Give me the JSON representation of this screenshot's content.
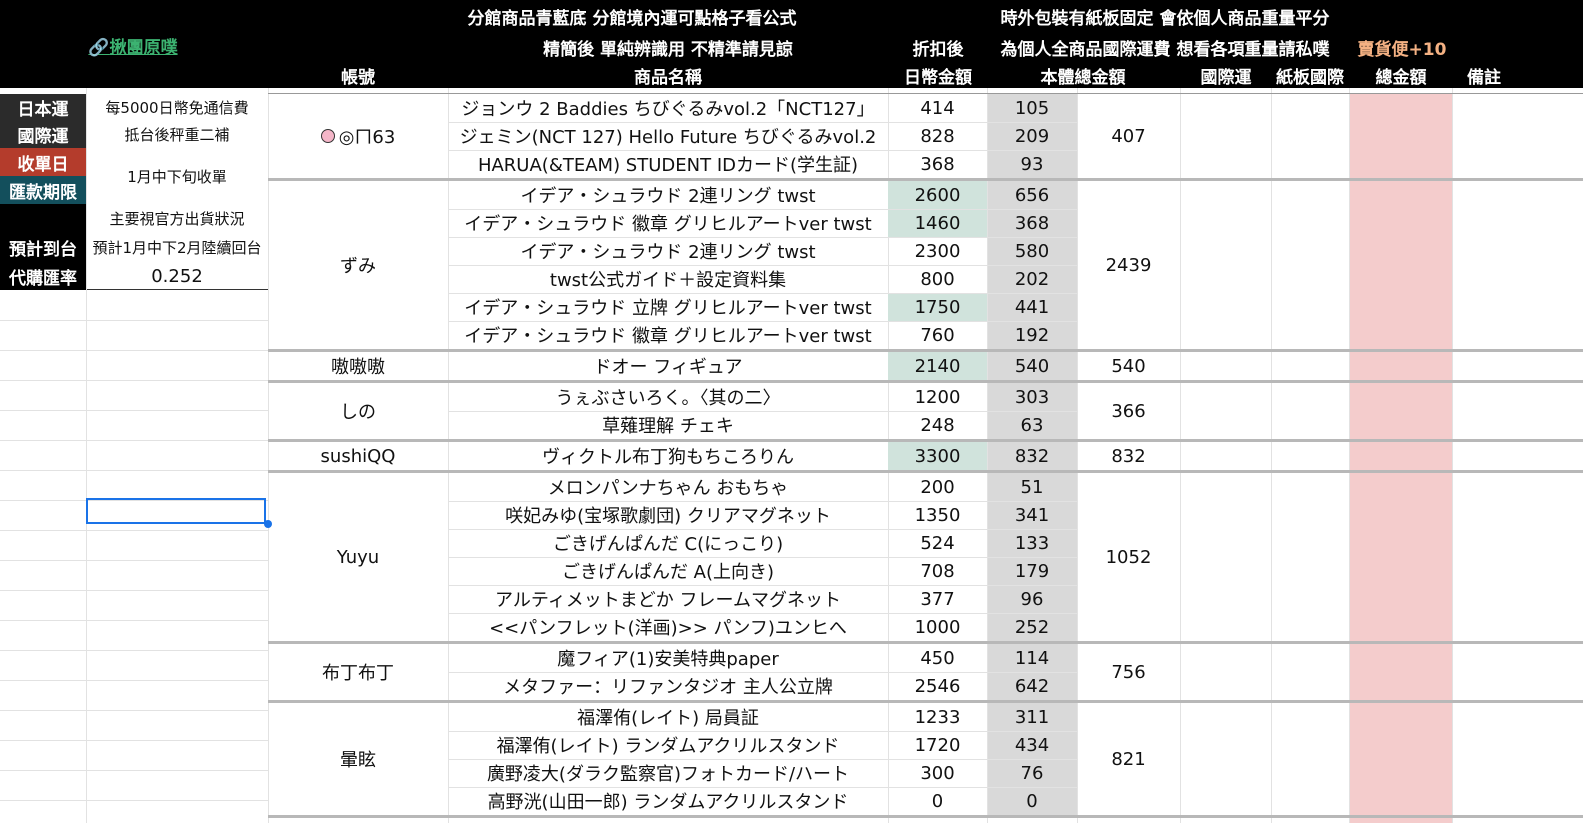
{
  "header": {
    "line1_left": "分館商品青藍底 分館境內運可點格子看公式",
    "line1_right": "時外包裝有紙板固定 會依個人商品重量平分",
    "line2_mid": "精簡後 單純辨識用 不精準請見諒",
    "line2_discount": "折扣後",
    "line2_right": "為個人全商品國際運費 想看各項重量請私噗",
    "line2_bonus": "賣貨便+10",
    "link": "揪團原噗",
    "columns": {
      "account": "帳號",
      "product": "商品名稱",
      "jpy": "日幣金額",
      "total_body": "本體總金額",
      "intl": "國際運",
      "board": "紙板國際",
      "total": "總金額",
      "note": "備註"
    }
  },
  "info": {
    "japan_ship_label": "日本運",
    "japan_ship_value": "每5000日幣免通信費",
    "intl_ship_label": "國際運",
    "intl_ship_value": "抵台後秤重二補",
    "order_date_label": "收單日",
    "order_date_value": "1月中下旬收單",
    "pay_deadline_label": "匯款期限",
    "status_text": "主要視官方出貨狀況",
    "arrival_label": "預計到台",
    "arrival_value": "預計1月中下2月陸續回台",
    "rate_label": "代購匯率",
    "rate_value": "0.252"
  },
  "colors": {
    "header_bg": "#000000",
    "link": "#3cb371",
    "bonus": "#f4b183",
    "info_label_dark": "#2b2b2b",
    "info_label_red": "#b43c2c",
    "info_label_teal": "#134f5c",
    "branch_fill": "#d0e3dc",
    "body_fill": "#d9d9d9",
    "total_fill": "#f4cccc",
    "selection": "#1a73e8"
  },
  "groups": [
    {
      "account": "◎ㄇ63",
      "icon": "pink-circle-icon",
      "subtotal": "407",
      "items": [
        {
          "name": "ジョンウ 2 Baddies ちびぐるみvol.2「NCT127」",
          "jpy": "414",
          "body": "105",
          "branch": false
        },
        {
          "name": "ジェミン(NCT 127) Hello Future ちびぐるみvol.2",
          "jpy": "828",
          "body": "209",
          "branch": false
        },
        {
          "name": "HARUA(&TEAM) STUDENT IDカード(学生証)",
          "jpy": "368",
          "body": "93",
          "branch": false
        }
      ]
    },
    {
      "account": "ずみ",
      "subtotal": "2439",
      "items": [
        {
          "name": "イデア・シュラウド 2連リング twst",
          "jpy": "2600",
          "body": "656",
          "branch": true
        },
        {
          "name": "イデア・シュラウド 徽章 グリヒルアートver twst",
          "jpy": "1460",
          "body": "368",
          "branch": true
        },
        {
          "name": "イデア・シュラウド 2連リング twst",
          "jpy": "2300",
          "body": "580",
          "branch": false
        },
        {
          "name": "twst公式ガイド＋設定資料集",
          "jpy": "800",
          "body": "202",
          "branch": false
        },
        {
          "name": "イデア・シュラウド 立牌 グリヒルアートver twst",
          "jpy": "1750",
          "body": "441",
          "branch": true
        },
        {
          "name": "イデア・シュラウド 徽章 グリヒルアートver twst",
          "jpy": "760",
          "body": "192",
          "branch": false
        }
      ]
    },
    {
      "account": "嗷嗷嗷",
      "subtotal": "540",
      "items": [
        {
          "name": "ドオー フィギュア",
          "jpy": "2140",
          "body": "540",
          "branch": true
        }
      ]
    },
    {
      "account": "しの",
      "subtotal": "366",
      "items": [
        {
          "name": "うぇぶさいろく。〈其の二〉",
          "jpy": "1200",
          "body": "303",
          "branch": false
        },
        {
          "name": "草薙理解 チェキ",
          "jpy": "248",
          "body": "63",
          "branch": false
        }
      ]
    },
    {
      "account": "sushiQQ",
      "subtotal": "832",
      "items": [
        {
          "name": "ヴィクトル布丁狗もちころりん",
          "jpy": "3300",
          "body": "832",
          "branch": true
        }
      ]
    },
    {
      "account": "Yuyu",
      "subtotal": "1052",
      "items": [
        {
          "name": "メロンパンナちゃん おもちゃ",
          "jpy": "200",
          "body": "51",
          "branch": false
        },
        {
          "name": "咲妃みゆ(宝塚歌劇団) クリアマグネット",
          "jpy": "1350",
          "body": "341",
          "branch": false
        },
        {
          "name": "ごきげんぱんだ C(にっこり)",
          "jpy": "524",
          "body": "133",
          "branch": false
        },
        {
          "name": "ごきげんぱんだ A(上向き)",
          "jpy": "708",
          "body": "179",
          "branch": false
        },
        {
          "name": "アルティメットまどか フレームマグネット",
          "jpy": "377",
          "body": "96",
          "branch": false
        },
        {
          "name": "<<パンフレット(洋画)>> パンフ)ユンヒへ",
          "jpy": "1000",
          "body": "252",
          "branch": false
        }
      ]
    },
    {
      "account": "布丁布丁",
      "subtotal": "756",
      "items": [
        {
          "name": "魔フィア(1)安美特典paper",
          "jpy": "450",
          "body": "114",
          "branch": false
        },
        {
          "name": "メタファー：リファンタジオ 主人公立牌",
          "jpy": "2546",
          "body": "642",
          "branch": false
        }
      ]
    },
    {
      "account": "暈眩",
      "subtotal": "821",
      "items": [
        {
          "name": "福澤侑(レイト) 局員証",
          "jpy": "1233",
          "body": "311",
          "branch": false
        },
        {
          "name": "福澤侑(レイト) ランダムアクリルスタンド",
          "jpy": "1720",
          "body": "434",
          "branch": false
        },
        {
          "name": "廣野凌大(ダラク監察官)フォトカード/ハート",
          "jpy": "300",
          "body": "76",
          "branch": false
        },
        {
          "name": "高野洸(山田一郎) ランダムアクリルスタンド",
          "jpy": "0",
          "body": "0",
          "branch": false
        }
      ]
    }
  ]
}
